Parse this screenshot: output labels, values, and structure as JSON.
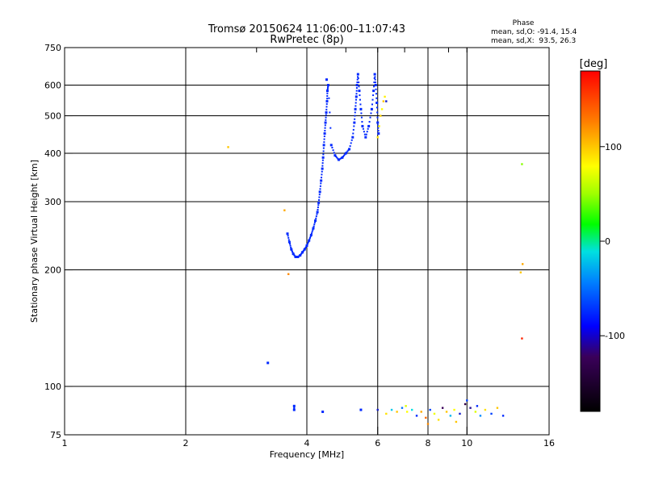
{
  "chart_data": {
    "type": "scatter",
    "title": "Tromsø 20150624 11:06:00–11:07:43",
    "subtitle": "RwPretec (8p)",
    "xlabel": "Frequency [MHz]",
    "ylabel": "Stationary phase Virtual Height [km]",
    "x_scale": "log",
    "y_scale": "log",
    "xlim": [
      1,
      16
    ],
    "ylim": [
      75,
      750
    ],
    "x_ticks": [
      1,
      2,
      4,
      6,
      8,
      10,
      16
    ],
    "y_ticks": [
      75,
      100,
      200,
      300,
      400,
      500,
      600,
      750
    ],
    "grid": true,
    "stats": {
      "heading": "Phase",
      "line_o": "mean, sd,O: -91.4, 15.4",
      "line_x": "mean, sd,X:  93.5, 26.3"
    },
    "colorbar": {
      "label": "[deg]",
      "range": [
        -180,
        180
      ],
      "ticks": [
        100,
        0,
        -100
      ]
    },
    "o_trace_phase": -100,
    "o_trace": [
      [
        3.58,
        248
      ],
      [
        3.62,
        236
      ],
      [
        3.66,
        226
      ],
      [
        3.7,
        220
      ],
      [
        3.75,
        216
      ],
      [
        3.8,
        216
      ],
      [
        3.85,
        218
      ],
      [
        3.9,
        222
      ],
      [
        3.95,
        226
      ],
      [
        4.0,
        231
      ],
      [
        4.05,
        238
      ],
      [
        4.1,
        246
      ],
      [
        4.15,
        256
      ],
      [
        4.2,
        268
      ],
      [
        4.25,
        282
      ],
      [
        4.28,
        298
      ],
      [
        4.31,
        318
      ],
      [
        4.34,
        340
      ],
      [
        4.37,
        365
      ],
      [
        4.39,
        390
      ],
      [
        4.41,
        420
      ],
      [
        4.43,
        450
      ],
      [
        4.45,
        480
      ],
      [
        4.47,
        510
      ],
      [
        4.49,
        545
      ],
      [
        4.5,
        580
      ],
      [
        4.52,
        600
      ],
      [
        4.6,
        420
      ],
      [
        4.7,
        395
      ],
      [
        4.8,
        385
      ],
      [
        4.9,
        390
      ],
      [
        5.0,
        400
      ],
      [
        5.1,
        410
      ],
      [
        5.2,
        440
      ],
      [
        5.25,
        480
      ],
      [
        5.28,
        520
      ],
      [
        5.31,
        560
      ],
      [
        5.33,
        600
      ],
      [
        5.36,
        640
      ],
      [
        5.4,
        580
      ],
      [
        5.45,
        520
      ],
      [
        5.5,
        470
      ],
      [
        5.6,
        440
      ],
      [
        5.7,
        470
      ],
      [
        5.8,
        520
      ],
      [
        5.86,
        580
      ],
      [
        5.9,
        640
      ],
      [
        5.93,
        600
      ],
      [
        5.97,
        540
      ],
      [
        6.0,
        480
      ],
      [
        6.03,
        450
      ],
      [
        4.48,
        620
      ],
      [
        3.2,
        115
      ],
      [
        3.72,
        89
      ],
      [
        3.72,
        87
      ],
      [
        4.38,
        86
      ],
      [
        5.45,
        87
      ]
    ],
    "x_trace_points": [
      {
        "x": 2.55,
        "y": 415,
        "phase": 120
      },
      {
        "x": 3.52,
        "y": 285,
        "phase": 130
      },
      {
        "x": 3.6,
        "y": 195,
        "phase": 140
      },
      {
        "x": 6.0,
        "y": 440,
        "phase": 110
      },
      {
        "x": 6.05,
        "y": 470,
        "phase": 105
      },
      {
        "x": 6.1,
        "y": 500,
        "phase": 115
      },
      {
        "x": 6.15,
        "y": 520,
        "phase": 100
      },
      {
        "x": 6.2,
        "y": 545,
        "phase": 120
      },
      {
        "x": 6.25,
        "y": 560,
        "phase": 105
      },
      {
        "x": 6.3,
        "y": 545,
        "phase": -110
      },
      {
        "x": 13.7,
        "y": 375,
        "phase": 40
      },
      {
        "x": 13.6,
        "y": 197,
        "phase": 120
      },
      {
        "x": 13.75,
        "y": 207,
        "phase": 130
      },
      {
        "x": 13.7,
        "y": 133,
        "phase": 170
      }
    ],
    "noise_points": [
      {
        "x": 6.0,
        "y": 87,
        "phase": -110
      },
      {
        "x": 6.3,
        "y": 85,
        "phase": 110
      },
      {
        "x": 6.5,
        "y": 87,
        "phase": -30
      },
      {
        "x": 6.7,
        "y": 86,
        "phase": 120
      },
      {
        "x": 6.9,
        "y": 88,
        "phase": -70
      },
      {
        "x": 7.1,
        "y": 86,
        "phase": 100
      },
      {
        "x": 7.3,
        "y": 87,
        "phase": -20
      },
      {
        "x": 7.5,
        "y": 84,
        "phase": -100
      },
      {
        "x": 7.7,
        "y": 86,
        "phase": 130
      },
      {
        "x": 7.9,
        "y": 83,
        "phase": 150
      },
      {
        "x": 8.1,
        "y": 87,
        "phase": -90
      },
      {
        "x": 8.3,
        "y": 85,
        "phase": 90
      },
      {
        "x": 8.5,
        "y": 82,
        "phase": 110
      },
      {
        "x": 8.7,
        "y": 88,
        "phase": -130
      },
      {
        "x": 8.9,
        "y": 86,
        "phase": 120
      },
      {
        "x": 9.1,
        "y": 84,
        "phase": -40
      },
      {
        "x": 9.3,
        "y": 87,
        "phase": 100
      },
      {
        "x": 9.6,
        "y": 85,
        "phase": -110
      },
      {
        "x": 9.9,
        "y": 90,
        "phase": -140
      },
      {
        "x": 10.2,
        "y": 88,
        "phase": -120
      },
      {
        "x": 10.5,
        "y": 86,
        "phase": 80
      },
      {
        "x": 10.8,
        "y": 84,
        "phase": -60
      },
      {
        "x": 11.1,
        "y": 87,
        "phase": 110
      },
      {
        "x": 11.5,
        "y": 85,
        "phase": -90
      },
      {
        "x": 11.9,
        "y": 88,
        "phase": 120
      },
      {
        "x": 12.3,
        "y": 84,
        "phase": -100
      },
      {
        "x": 7.05,
        "y": 89,
        "phase": 80
      },
      {
        "x": 8.0,
        "y": 80,
        "phase": 140
      },
      {
        "x": 9.4,
        "y": 81,
        "phase": 120
      },
      {
        "x": 10.0,
        "y": 92,
        "phase": -90
      },
      {
        "x": 10.6,
        "y": 89,
        "phase": -100
      }
    ]
  }
}
